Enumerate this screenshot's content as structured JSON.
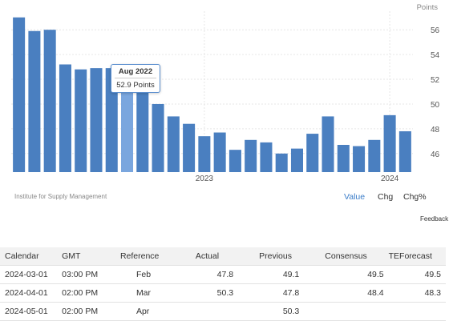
{
  "chart": {
    "units_label": "Points",
    "source": "Institute for Supply Management",
    "tooltip": {
      "title": "Aug 2022",
      "value": "52.9 Points"
    },
    "views": {
      "value": "Value",
      "chg": "Chg",
      "chgp": "Chg%"
    },
    "feedback": "Feedback",
    "bar_color": "#4a7fc0",
    "highlight_color": "#7aa6de",
    "highlight_index": 7
  },
  "chart_data": {
    "type": "bar",
    "categories": [
      "2022-01",
      "2022-02",
      "2022-03",
      "2022-04",
      "2022-05",
      "2022-06",
      "2022-07",
      "2022-08",
      "2022-09",
      "2022-10",
      "2022-11",
      "2022-12",
      "2023-01",
      "2023-02",
      "2023-03",
      "2023-04",
      "2023-05",
      "2023-06",
      "2023-07",
      "2023-08",
      "2023-09",
      "2023-10",
      "2023-11",
      "2023-12",
      "2024-01",
      "2024-02"
    ],
    "values": [
      57.0,
      55.9,
      56.0,
      53.2,
      52.8,
      52.9,
      52.9,
      52.9,
      51.1,
      50.0,
      49.0,
      48.4,
      47.4,
      47.7,
      46.3,
      47.1,
      46.9,
      46.0,
      46.4,
      47.6,
      49.0,
      46.7,
      46.6,
      47.1,
      49.1,
      47.8
    ],
    "x_tick_labels": [
      "2023",
      "2024"
    ],
    "y_ticks": [
      46,
      48,
      50,
      52,
      54,
      56
    ],
    "ylim": [
      44.5,
      57.5
    ],
    "ylabel": "Points",
    "grid": true
  },
  "calendar": {
    "headers": [
      "Calendar",
      "GMT",
      "Reference",
      "Actual",
      "Previous",
      "Consensus",
      "TEForecast"
    ],
    "rows": [
      [
        "2024-03-01",
        "03:00 PM",
        "Feb",
        "47.8",
        "49.1",
        "49.5",
        "49.5"
      ],
      [
        "2024-04-01",
        "02:00 PM",
        "Mar",
        "50.3",
        "47.8",
        "48.4",
        "48.3"
      ],
      [
        "2024-05-01",
        "02:00 PM",
        "Apr",
        "",
        "50.3",
        "",
        ""
      ]
    ]
  }
}
